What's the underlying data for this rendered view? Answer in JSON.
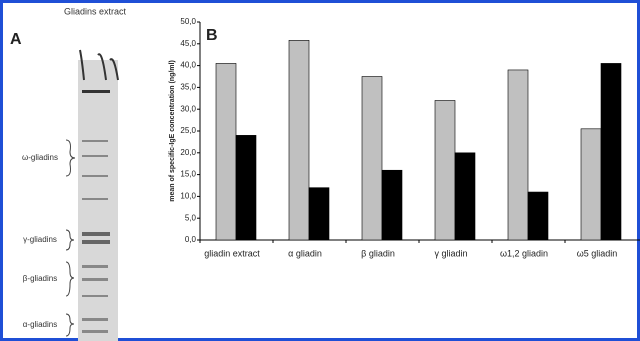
{
  "panel_a": {
    "label": "A",
    "lane_title": "Gliadins extract",
    "bands": [
      "ω-gliadins",
      "γ-gliadins",
      "β-gliadins",
      "α-gliadins"
    ]
  },
  "chart_data": {
    "type": "bar",
    "panel_label": "B",
    "y_axis_label": "mean of specific-IgE concentration (ng/ml)",
    "categories": [
      "gliadin extract",
      "α gliadin",
      "β gliadin",
      "γ gliadin",
      "ω1,2 gliadin",
      "ω5 gliadin"
    ],
    "series": [
      {
        "color": "#c0c0c0",
        "values": [
          40.5,
          45.8,
          37.5,
          32,
          39,
          25.5
        ]
      },
      {
        "color": "#000000",
        "values": [
          24,
          12,
          16,
          20,
          11,
          40.5
        ]
      }
    ],
    "ylim": [
      0,
      50
    ],
    "yticks": [
      {
        "value": 0,
        "label": "0,0"
      },
      {
        "value": 5,
        "label": "5,0"
      },
      {
        "value": 10,
        "label": "10,0"
      },
      {
        "value": 15,
        "label": "15,0"
      },
      {
        "value": 20,
        "label": "20,0"
      },
      {
        "value": 25,
        "label": "25,0"
      },
      {
        "value": 30,
        "label": "30,0"
      },
      {
        "value": 35,
        "label": "35,0"
      },
      {
        "value": 40,
        "label": "40,0"
      },
      {
        "value": 45,
        "label": "45,0"
      },
      {
        "value": 50,
        "label": "50,0"
      }
    ]
  }
}
